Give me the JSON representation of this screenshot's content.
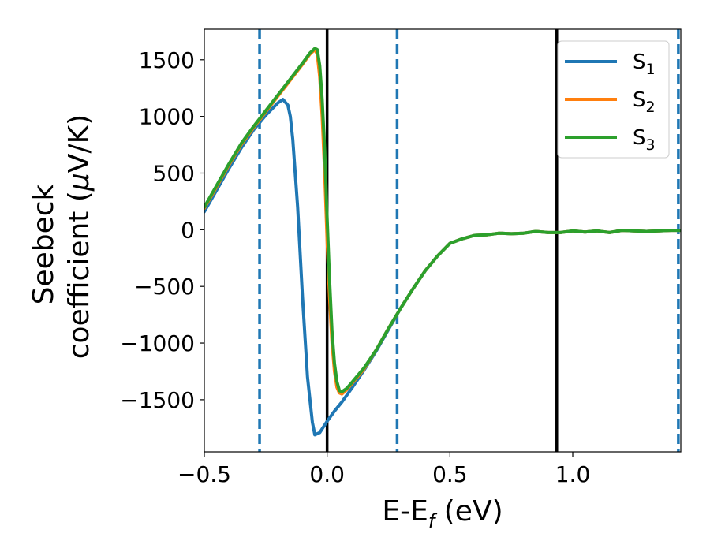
{
  "chart_data": {
    "type": "line",
    "title": "",
    "xlabel": {
      "main": "E-E",
      "sub": "f",
      "unit": " (eV)"
    },
    "ylabel": {
      "line1": "Seebeck",
      "line2_prefix": "coefficient  (",
      "mu": "μ",
      "line2_suffix": "V/K)"
    },
    "xlim": [
      -0.5,
      1.44
    ],
    "ylim": [
      -1960,
      1770
    ],
    "xticks": [
      -0.5,
      0.0,
      0.5,
      1.0
    ],
    "xtick_labels": [
      "−0.5",
      "0.0",
      "0.5",
      "1.0"
    ],
    "yticks": [
      1500,
      1000,
      500,
      0,
      -500,
      -1000,
      -1500
    ],
    "ytick_labels": [
      "1500",
      "1000",
      "500",
      "0",
      "−500",
      "−1000",
      "−1500"
    ],
    "grid": false,
    "legend_position": "top-right",
    "vlines": [
      {
        "x": -0.275,
        "style": "dashed",
        "color": "#1f77b4"
      },
      {
        "x": 0.285,
        "style": "dashed",
        "color": "#1f77b4"
      },
      {
        "x": 1.43,
        "style": "dashed",
        "color": "#1f77b4"
      },
      {
        "x": 0.0,
        "style": "solid",
        "color": "#000000"
      },
      {
        "x": 0.935,
        "style": "solid",
        "color": "#000000"
      }
    ],
    "series": [
      {
        "name": "S",
        "sub": "1",
        "color": "#1f77b4",
        "x": [
          -0.5,
          -0.45,
          -0.4,
          -0.35,
          -0.3,
          -0.25,
          -0.2,
          -0.18,
          -0.16,
          -0.15,
          -0.14,
          -0.12,
          -0.1,
          -0.08,
          -0.06,
          -0.05,
          -0.03,
          0.0,
          0.03,
          0.06,
          0.1,
          0.15,
          0.2,
          0.25,
          0.3,
          0.35,
          0.4,
          0.45,
          0.5,
          0.55,
          0.6,
          0.65,
          0.7,
          0.75,
          0.8,
          0.85,
          0.9,
          0.95,
          1.0,
          1.05,
          1.1,
          1.15,
          1.2,
          1.25,
          1.3,
          1.35,
          1.4,
          1.44
        ],
        "y": [
          160,
          350,
          540,
          720,
          880,
          1010,
          1120,
          1150,
          1100,
          1000,
          800,
          200,
          -600,
          -1300,
          -1700,
          -1810,
          -1790,
          -1690,
          -1600,
          -1520,
          -1400,
          -1240,
          -1070,
          -880,
          -690,
          -520,
          -360,
          -230,
          -120,
          -80,
          -50,
          -45,
          -30,
          -35,
          -30,
          -15,
          -25,
          -25,
          -10,
          -20,
          -10,
          -25,
          -5,
          -10,
          -15,
          -10,
          -5,
          -5
        ]
      },
      {
        "name": "S",
        "sub": "2",
        "color": "#ff7f0e",
        "x": [
          -0.5,
          -0.45,
          -0.4,
          -0.35,
          -0.3,
          -0.25,
          -0.2,
          -0.15,
          -0.1,
          -0.07,
          -0.05,
          -0.04,
          -0.03,
          -0.02,
          -0.01,
          0.0,
          0.01,
          0.02,
          0.03,
          0.04,
          0.05,
          0.06,
          0.08,
          0.1,
          0.15,
          0.2,
          0.25,
          0.3,
          0.35,
          0.4,
          0.45,
          0.5,
          0.55,
          0.6,
          0.65,
          0.7,
          0.75,
          0.8,
          0.85,
          0.9,
          0.95,
          1.0,
          1.05,
          1.1,
          1.15,
          1.2,
          1.25,
          1.3,
          1.35,
          1.4,
          1.44
        ],
        "y": [
          190,
          380,
          570,
          750,
          900,
          1040,
          1180,
          1320,
          1460,
          1550,
          1590,
          1550,
          1350,
          1000,
          500,
          -100,
          -600,
          -1000,
          -1250,
          -1390,
          -1440,
          -1450,
          -1410,
          -1360,
          -1230,
          -1060,
          -870,
          -690,
          -520,
          -360,
          -230,
          -120,
          -80,
          -50,
          -45,
          -30,
          -35,
          -30,
          -15,
          -25,
          -25,
          -10,
          -20,
          -10,
          -25,
          -5,
          -10,
          -15,
          -10,
          -5,
          -5
        ]
      },
      {
        "name": "S",
        "sub": "3",
        "color": "#2ca02c",
        "x": [
          -0.5,
          -0.45,
          -0.4,
          -0.35,
          -0.3,
          -0.25,
          -0.2,
          -0.15,
          -0.1,
          -0.07,
          -0.05,
          -0.04,
          -0.03,
          -0.02,
          -0.01,
          0.0,
          0.01,
          0.02,
          0.03,
          0.04,
          0.05,
          0.06,
          0.08,
          0.1,
          0.15,
          0.2,
          0.25,
          0.3,
          0.35,
          0.4,
          0.45,
          0.5,
          0.55,
          0.6,
          0.65,
          0.7,
          0.75,
          0.8,
          0.85,
          0.9,
          0.95,
          1.0,
          1.05,
          1.1,
          1.15,
          1.2,
          1.25,
          1.3,
          1.35,
          1.4,
          1.44
        ],
        "y": [
          200,
          390,
          580,
          760,
          910,
          1050,
          1190,
          1330,
          1470,
          1560,
          1600,
          1590,
          1450,
          1150,
          700,
          100,
          -450,
          -900,
          -1180,
          -1340,
          -1420,
          -1430,
          -1400,
          -1350,
          -1220,
          -1060,
          -870,
          -690,
          -520,
          -360,
          -230,
          -120,
          -80,
          -50,
          -45,
          -30,
          -35,
          -30,
          -15,
          -25,
          -25,
          -10,
          -20,
          -10,
          -25,
          -5,
          -10,
          -15,
          -10,
          -5,
          -5
        ]
      }
    ]
  }
}
